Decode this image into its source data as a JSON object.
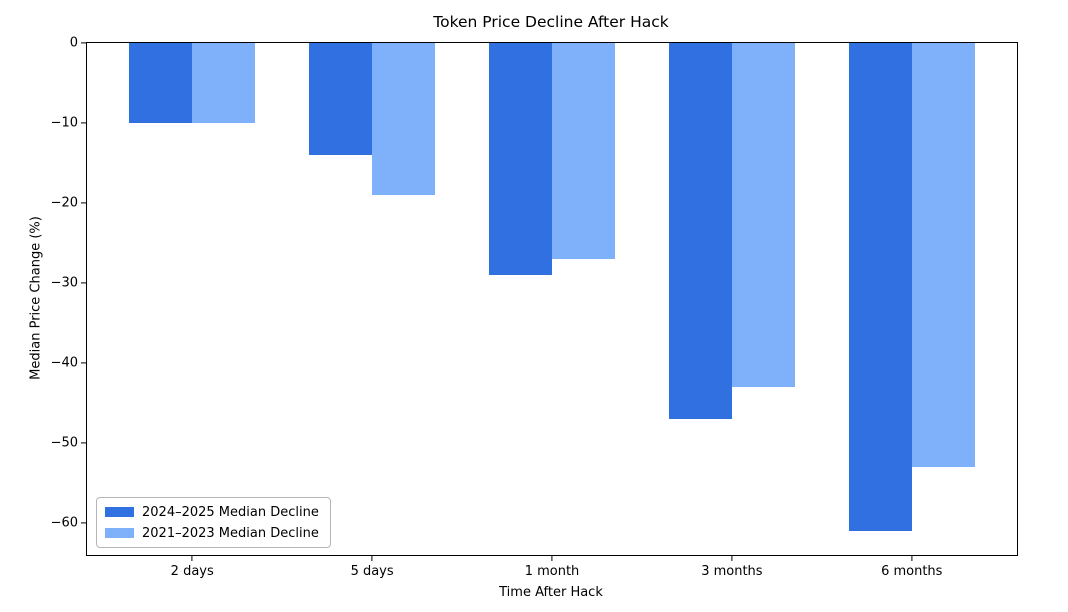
{
  "figure": {
    "background": "#ffffff",
    "text_color": "#000000",
    "spine_color": "#000000"
  },
  "chart_data": {
    "type": "bar",
    "title": "Token Price Decline After Hack",
    "xlabel": "Time After Hack",
    "ylabel": "Median Price Change (%)",
    "categories": [
      "2 days",
      "5 days",
      "1 month",
      "3 months",
      "6 months"
    ],
    "series": [
      {
        "name": "2024–2025 Median Decline",
        "color": "#3070e0",
        "values": [
          -10,
          -14,
          -29,
          -47,
          -61
        ]
      },
      {
        "name": "2021–2023 Median Decline",
        "color": "#7fb0fa",
        "values": [
          -10,
          -19,
          -27,
          -43,
          -53
        ]
      }
    ],
    "yticks": [
      0,
      -10,
      -20,
      -30,
      -40,
      -50,
      -60
    ],
    "ylim": [
      -64,
      0
    ],
    "xlim": [
      -0.585,
      4.585
    ],
    "bar_width": 0.35,
    "grid": false,
    "legend_position": "lower left"
  }
}
